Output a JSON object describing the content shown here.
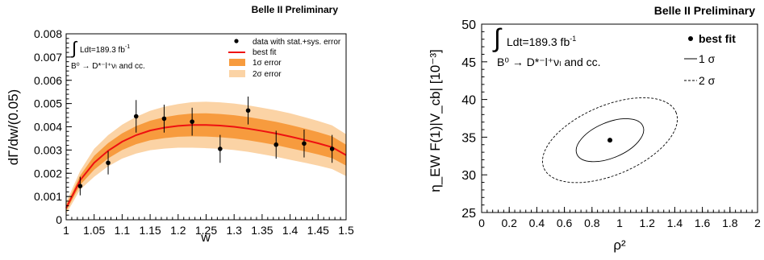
{
  "chart_data": [
    {
      "type": "scatter",
      "title": "Belle II Preliminary",
      "xlabel": "w",
      "ylabel": "dΓ/dw/(0.05)",
      "xlim": [
        1.0,
        1.5
      ],
      "ylim": [
        0,
        0.008
      ],
      "x_ticks": [
        "1",
        "1.05",
        "1.1",
        "1.15",
        "1.2",
        "1.25",
        "1.3",
        "1.35",
        "1.4",
        "1.45",
        "1.5"
      ],
      "y_ticks": [
        "0",
        "0.001",
        "0.002",
        "0.003",
        "0.004",
        "0.005",
        "0.006",
        "0.007",
        "0.008"
      ],
      "annotation_lumi": "Ldt=189.3 fb",
      "annotation_lumi_exp": "-1",
      "annotation_decay": "B⁰ → D*⁻l⁺νₗ and cc.",
      "legend": {
        "data": "data with stat.+sys. error",
        "fit": "best fit",
        "sigma1": "1σ error",
        "sigma2": "2σ error"
      },
      "colors": {
        "fit": "#ee1111",
        "band1": "#f79b3e",
        "band2": "#fbd3a5"
      },
      "series": [
        {
          "name": "data with stat.+sys. error",
          "points": [
            {
              "x": 1.025,
              "y": 0.00145,
              "err": 0.0004
            },
            {
              "x": 1.075,
              "y": 0.00245,
              "err": 0.0005
            },
            {
              "x": 1.125,
              "y": 0.00445,
              "err": 0.0007
            },
            {
              "x": 1.175,
              "y": 0.00435,
              "err": 0.0006
            },
            {
              "x": 1.225,
              "y": 0.00422,
              "err": 0.0006
            },
            {
              "x": 1.275,
              "y": 0.00305,
              "err": 0.0006
            },
            {
              "x": 1.325,
              "y": 0.0047,
              "err": 0.0006
            },
            {
              "x": 1.375,
              "y": 0.00323,
              "err": 0.0006
            },
            {
              "x": 1.425,
              "y": 0.00328,
              "err": 0.0006
            },
            {
              "x": 1.475,
              "y": 0.00305,
              "err": 0.0006
            }
          ]
        },
        {
          "name": "best fit",
          "x": [
            1.0,
            1.025,
            1.05,
            1.075,
            1.1,
            1.125,
            1.15,
            1.175,
            1.2,
            1.225,
            1.25,
            1.275,
            1.3,
            1.325,
            1.35,
            1.375,
            1.4,
            1.425,
            1.45,
            1.475,
            1.5
          ],
          "y": [
            0.0005,
            0.0017,
            0.00245,
            0.00297,
            0.00336,
            0.00364,
            0.00384,
            0.00396,
            0.00404,
            0.00408,
            0.00408,
            0.00405,
            0.004,
            0.00392,
            0.00382,
            0.00371,
            0.00358,
            0.00344,
            0.00329,
            0.00312,
            0.00278
          ],
          "band1": [
            0.00012,
            0.0002,
            0.0003,
            0.00033,
            0.00036,
            0.00039,
            0.00042,
            0.00045,
            0.00047,
            0.00049,
            0.0005,
            0.0005,
            0.0005,
            0.0005,
            0.0005,
            0.0005,
            0.0005,
            0.00049,
            0.00048,
            0.00047,
            0.00045
          ],
          "band2": [
            0.00025,
            0.0004,
            0.0006,
            0.00067,
            0.00073,
            0.00079,
            0.00085,
            0.0009,
            0.00094,
            0.00098,
            0.001,
            0.001,
            0.001,
            0.001,
            0.001,
            0.001,
            0.001,
            0.00098,
            0.00096,
            0.00094,
            0.0009
          ]
        }
      ]
    },
    {
      "type": "scatter",
      "title": "Belle II Preliminary",
      "xlabel": "ρ²",
      "ylabel": "η_EW F(1)|V_cb| [10⁻³]",
      "xlim": [
        0,
        2
      ],
      "ylim": [
        25,
        50
      ],
      "x_ticks": [
        "0",
        "0.2",
        "0.4",
        "0.6",
        "0.8",
        "1",
        "1.2",
        "1.4",
        "1.6",
        "1.8",
        "2"
      ],
      "y_ticks": [
        "25",
        "30",
        "35",
        "40",
        "45",
        "50"
      ],
      "annotation_lumi": "Ldt=189.3 fb",
      "annotation_lumi_exp": "-1",
      "annotation_decay": "B⁰ → D*⁻l⁺νₗ and cc.",
      "legend": {
        "fit": "best fit",
        "sigma1": "1 σ",
        "sigma2": "2 σ"
      },
      "best_fit": {
        "x": 0.93,
        "y": 34.6
      },
      "contour_1sigma": {
        "cx": 0.93,
        "cy": 34.6,
        "rx": 0.26,
        "ry": 2.35,
        "angle_deg": -23
      },
      "contour_2sigma": {
        "cx": 0.93,
        "cy": 34.6,
        "rx": 0.52,
        "ry": 4.6,
        "angle_deg": -23
      }
    }
  ]
}
